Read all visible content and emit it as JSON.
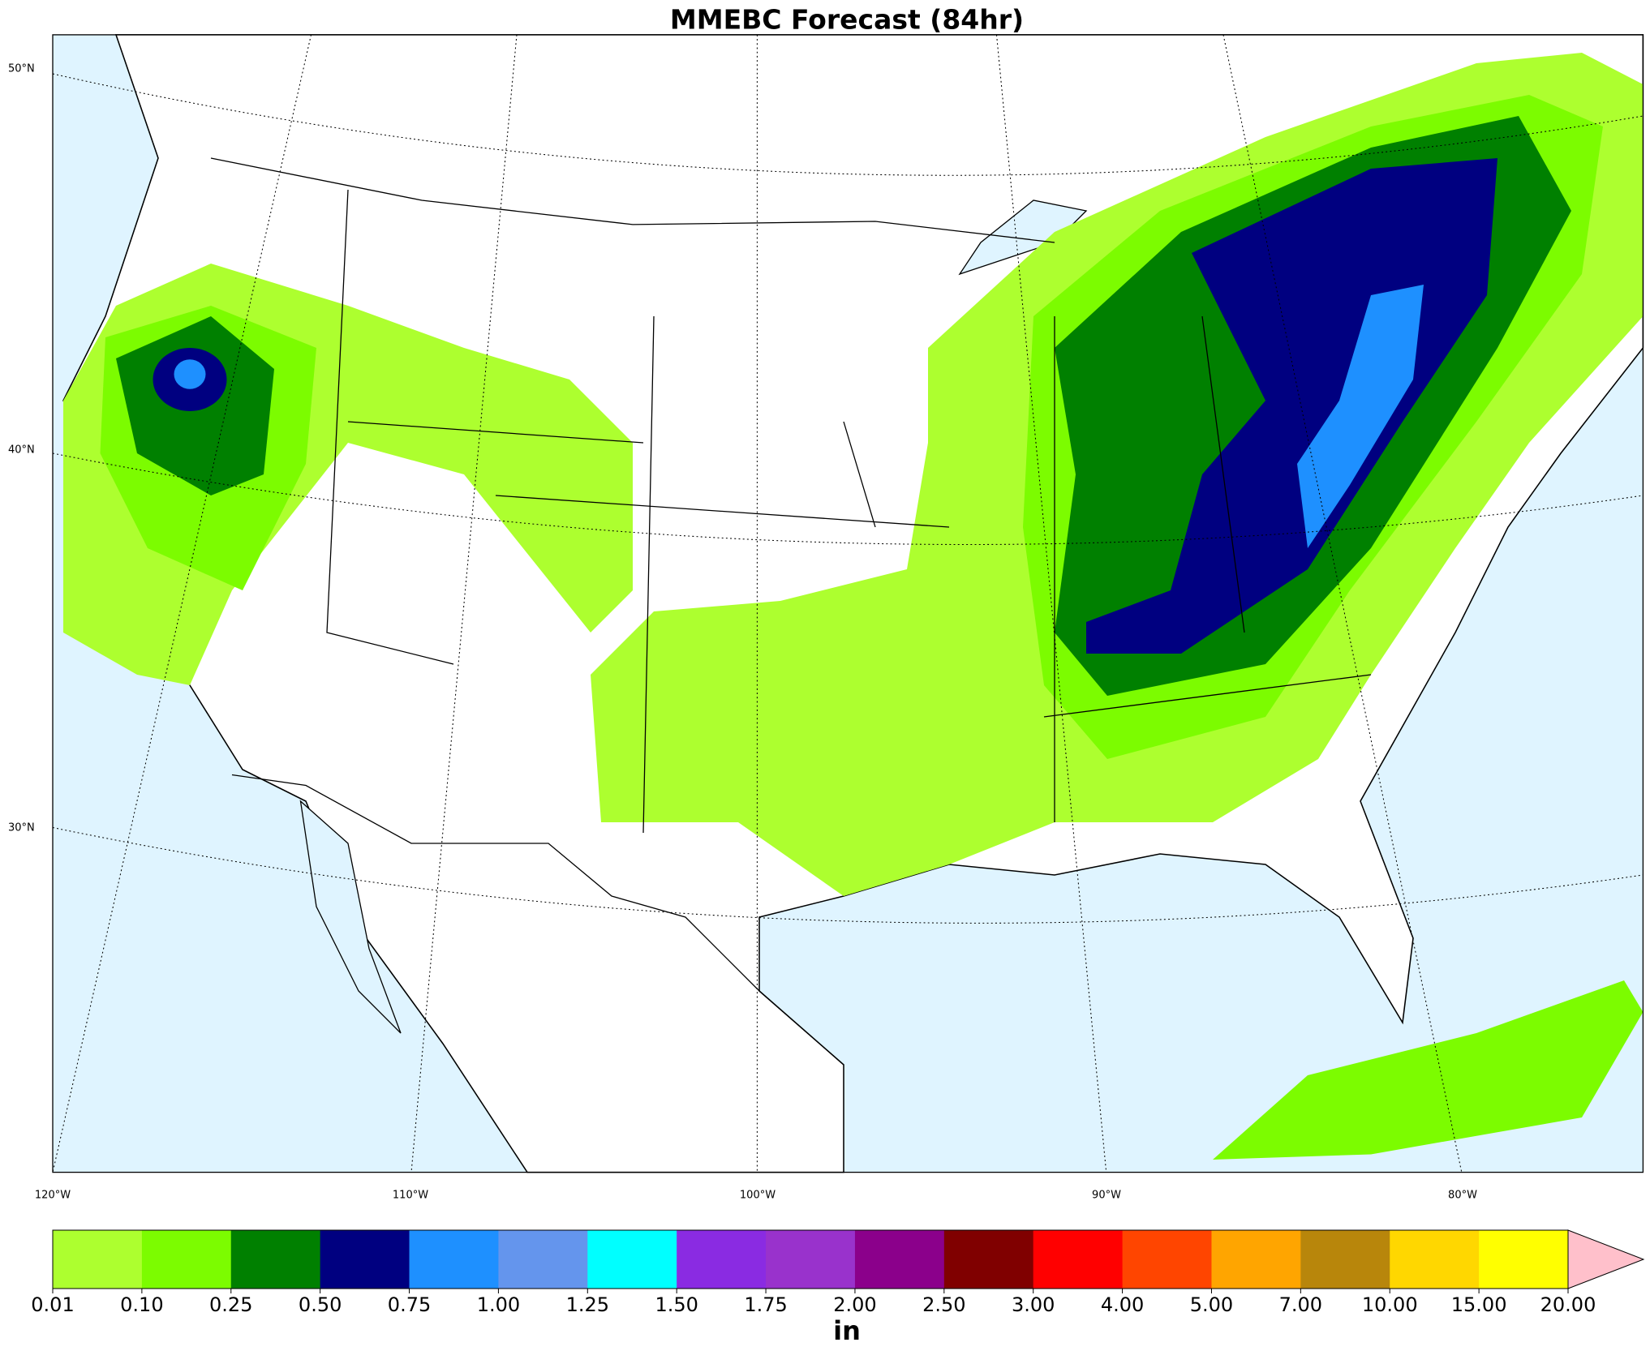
{
  "title": "MMEBC Forecast (84hr)",
  "map": {
    "lat_labels": [
      "50°N",
      "40°N",
      "30°N"
    ],
    "lon_labels": [
      "120°W",
      "110°W",
      "100°W",
      "90°W",
      "80°W"
    ]
  },
  "colorbar": {
    "ticks": [
      0.01,
      {
        "value": 0.1,
        "label": "0.10"
      },
      0.25,
      {
        "value": 0.5,
        "label": "0.50"
      },
      0.75,
      {
        "value": 1,
        "label": "1.00"
      },
      1.25,
      {
        "value": 1.5,
        "label": "1.50"
      },
      1.75,
      {
        "value": 2,
        "label": "2.00"
      },
      {
        "value": 2.5,
        "label": "2.50"
      },
      {
        "value": 3,
        "label": "3.00"
      },
      {
        "value": 4,
        "label": "4.00"
      },
      {
        "value": 5,
        "label": "5.00"
      },
      {
        "value": 7,
        "label": "7.00"
      },
      {
        "value": 10,
        "label": "10.00"
      },
      {
        "value": 15,
        "label": "15.00"
      },
      {
        "value": 20,
        "label": "20.00"
      }
    ],
    "colors": [
      "#adff2f",
      "#7cfc00",
      "#008000",
      "#000080",
      "#1e90ff",
      "#6495ed",
      "#00ffff",
      "#8a2be2",
      "#9932cc",
      "#8b008b",
      "#800000",
      "#ff0000",
      "#ff4500",
      "#ffa500",
      "#b8860b",
      "#ffd700",
      "#ffff00"
    ],
    "extend_color": "#ffc0cb",
    "unit": "in"
  }
}
